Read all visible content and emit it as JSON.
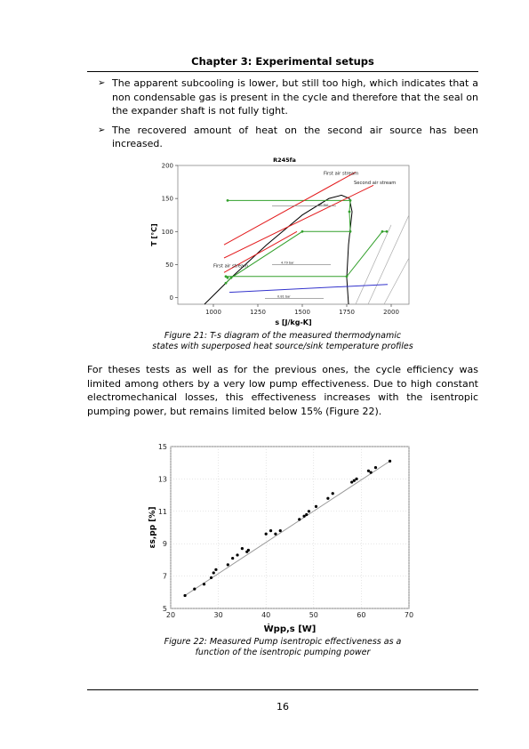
{
  "header": {
    "title": "Chapter 3: Experimental setups"
  },
  "bullets": [
    "The apparent subcooling is lower, but still too high, which indicates that a non condensable gas is present in the cycle and therefore that the seal on the expander shaft is not fully tight.",
    "The recovered amount of heat on the second air source has been increased."
  ],
  "figure21": {
    "caption_line1": "Figure 21: T-s diagram of the measured thermodynamic",
    "caption_line2": "states with superposed heat source/sink temperature profiles"
  },
  "paragraph": "For theses tests as well as for the previous ones, the cycle efficiency was limited among others by a very low pump effectiveness. Due to high constant electromechanical losses, this effectiveness increases with the isentropic pumping power, but remains limited below 15% (Figure 22).",
  "figure22": {
    "caption_line1": "Figure 22: Measured Pump isentropic effectiveness as a",
    "caption_line2": "function of the  isentropic pumping power"
  },
  "page_number": "16",
  "chart_data": [
    {
      "type": "line",
      "title": "R245fa",
      "xlabel": "s [J/kg-K]",
      "ylabel": "T [°C]",
      "xlim": [
        800,
        2100
      ],
      "ylim": [
        -10,
        200
      ],
      "xticks": [
        "1000",
        "1250",
        "1500",
        "1750",
        "2000"
      ],
      "yticks": [
        "0",
        "50",
        "100",
        "150",
        "200"
      ],
      "annotations": [
        "First air stream",
        "Second air stream",
        "First air stream",
        "60 bar",
        "4.79 bar",
        "0.81 bar"
      ],
      "saturation_dome": {
        "x": [
          950,
          1100,
          1300,
          1500,
          1650,
          1720,
          1765,
          1780,
          1760,
          1750,
          1760
        ],
        "y": [
          -10,
          30,
          80,
          125,
          150,
          155,
          150,
          130,
          80,
          30,
          -10
        ]
      },
      "series": [
        {
          "x": [
            1070,
            1100,
            1500,
            1770,
            1765,
            1770,
            1080
          ],
          "y": [
            22,
            30,
            100,
            100,
            130,
            147,
            147
          ],
          "color": "#33a02c"
        },
        {
          "x": [
            1080,
            1070,
            1750,
            1950,
            1975
          ],
          "y": [
            30,
            32,
            32,
            100,
            100
          ],
          "color": "#33a02c"
        },
        {
          "x": [
            1060,
            1800
          ],
          "y": [
            80,
            190
          ],
          "color": "#e31a1c"
        },
        {
          "x": [
            1060,
            1900
          ],
          "y": [
            60,
            170
          ],
          "color": "#e31a1c"
        },
        {
          "x": [
            1060,
            1470
          ],
          "y": [
            38,
            100
          ],
          "color": "#e31a1c"
        },
        {
          "x": [
            1090,
            1980
          ],
          "y": [
            8,
            20
          ],
          "color": "#3333cc"
        }
      ]
    },
    {
      "type": "scatter",
      "xlabel": "Ẇpp,s  [W]",
      "ylabel": "εs,pp  [%]",
      "xlim": [
        20,
        70
      ],
      "ylim": [
        5,
        15
      ],
      "xticks": [
        "20",
        "30",
        "40",
        "50",
        "60",
        "70"
      ],
      "yticks": [
        "5",
        "7",
        "9",
        "11",
        "13",
        "15"
      ],
      "points": {
        "x": [
          23,
          25,
          27,
          28.5,
          29,
          29.5,
          32,
          33,
          34,
          35,
          36,
          36.3,
          40,
          41,
          42,
          43,
          47,
          48,
          48.5,
          49,
          50.5,
          53,
          54,
          58,
          58.5,
          59,
          61.5,
          62,
          63,
          66
        ],
        "y": [
          5.8,
          6.2,
          6.5,
          6.9,
          7.2,
          7.4,
          7.7,
          8.1,
          8.3,
          8.7,
          8.5,
          8.6,
          9.6,
          9.8,
          9.6,
          9.8,
          10.5,
          10.7,
          10.8,
          11.0,
          11.3,
          11.8,
          12.1,
          12.8,
          12.9,
          13.0,
          13.5,
          13.4,
          13.7,
          14.1
        ]
      },
      "fit": {
        "x": [
          23,
          66
        ],
        "y": [
          5.8,
          14.1
        ]
      }
    }
  ]
}
